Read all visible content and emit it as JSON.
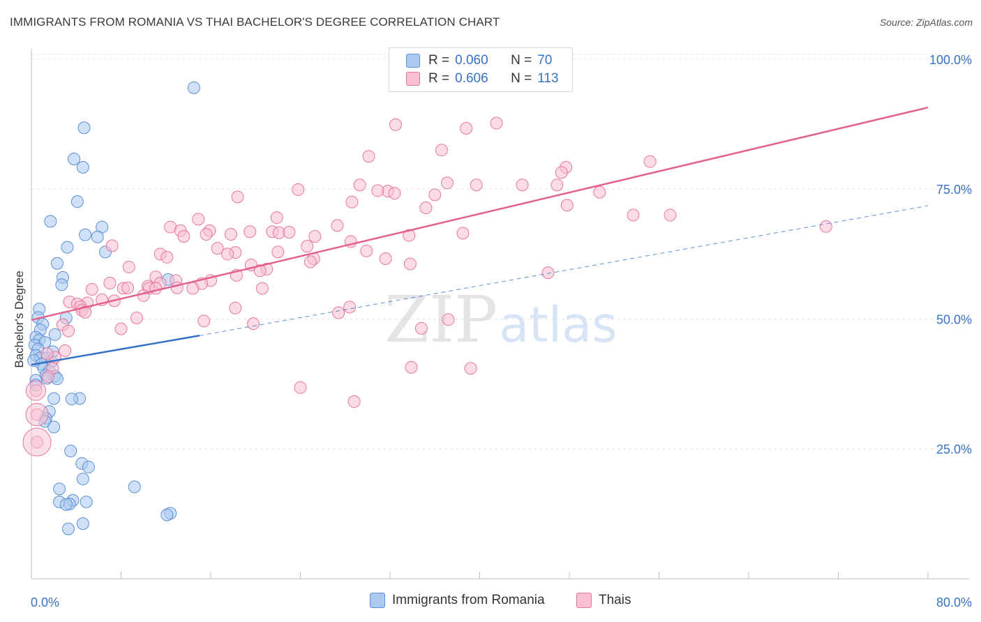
{
  "header": {
    "title": "IMMIGRANTS FROM ROMANIA VS THAI BACHELOR'S DEGREE CORRELATION CHART",
    "source": "Source: ZipAtlas.com"
  },
  "watermark": {
    "zip": "ZIP",
    "atlas": "atlas"
  },
  "legend": {
    "r_label": "R =",
    "n_label": "N =",
    "rows": [
      {
        "r": "0.060",
        "n": "70",
        "color": "#aac8f0",
        "stroke": "#5b8fd6"
      },
      {
        "r": "0.606",
        "n": "113",
        "color": "#f8c0d2",
        "stroke": "#e7769c"
      }
    ]
  },
  "bottom_legend": [
    {
      "label": "Immigrants from Romania",
      "color": "#aac8f0",
      "stroke": "#5b8fd6"
    },
    {
      "label": "Thais",
      "color": "#f8c0d2",
      "stroke": "#e7769c"
    }
  ],
  "chart_data": {
    "type": "scatter",
    "title": "IMMIGRANTS FROM ROMANIA VS THAI BACHELOR'S DEGREE CORRELATION CHART",
    "xlabel": "",
    "ylabel": "Bachelor's Degree",
    "xlim": [
      0,
      80
    ],
    "ylim": [
      0,
      102
    ],
    "x_tick_labels": [
      "0.0%",
      "80.0%"
    ],
    "y_ticks": [
      25,
      50,
      75,
      100
    ],
    "y_tick_labels": [
      "25.0%",
      "50.0%",
      "75.0%",
      "100.0%"
    ],
    "grid": true,
    "legend_position": "top-center",
    "colors": {
      "blue": "#3572c6",
      "pink": "#e2608f",
      "tick_text": "#3572c6"
    },
    "series": [
      {
        "name": "Immigrants from Romania",
        "color": "#aac8f0",
        "stroke": "#5b8fd6",
        "trend": {
          "x": [
            0,
            15
          ],
          "y": [
            41.2,
            46.8
          ],
          "dashed_to": [
            80,
            71.8
          ]
        },
        "points": [
          [
            14.5,
            94.5
          ],
          [
            4.7,
            86.8
          ],
          [
            3.8,
            80.8
          ],
          [
            4.6,
            79.2
          ],
          [
            4.1,
            72.6
          ],
          [
            1.7,
            68.8
          ],
          [
            6.3,
            67.7
          ],
          [
            4.8,
            66.2
          ],
          [
            5.9,
            65.8
          ],
          [
            3.2,
            63.8
          ],
          [
            6.6,
            62.9
          ],
          [
            2.3,
            60.7
          ],
          [
            2.8,
            58.0
          ],
          [
            2.7,
            56.6
          ],
          [
            12.2,
            57.6
          ],
          [
            0.7,
            51.9
          ],
          [
            3.1,
            50.2
          ],
          [
            0.6,
            50.3
          ],
          [
            1.0,
            49.0
          ],
          [
            0.8,
            47.9
          ],
          [
            2.1,
            47.0
          ],
          [
            0.4,
            46.5
          ],
          [
            0.7,
            46.0
          ],
          [
            1.2,
            45.5
          ],
          [
            0.3,
            45.0
          ],
          [
            0.6,
            44.2
          ],
          [
            1.9,
            43.7
          ],
          [
            0.4,
            43.0
          ],
          [
            0.8,
            42.5
          ],
          [
            1.4,
            42.5
          ],
          [
            0.2,
            42.0
          ],
          [
            1.8,
            41.8
          ],
          [
            0.9,
            41.3
          ],
          [
            1.1,
            40.5
          ],
          [
            1.6,
            40.0
          ],
          [
            1.3,
            39.2
          ],
          [
            2.1,
            39.0
          ],
          [
            1.4,
            38.6
          ],
          [
            2.3,
            38.5
          ],
          [
            0.4,
            38.2
          ],
          [
            0.4,
            37.3
          ],
          [
            2.0,
            34.7
          ],
          [
            4.3,
            34.7
          ],
          [
            3.6,
            34.6
          ],
          [
            1.6,
            32.2
          ],
          [
            1.3,
            30.9
          ],
          [
            1.2,
            30.3
          ],
          [
            2.0,
            29.2
          ],
          [
            3.5,
            24.6
          ],
          [
            4.5,
            22.2
          ],
          [
            5.1,
            21.5
          ],
          [
            4.6,
            19.2
          ],
          [
            9.2,
            17.7
          ],
          [
            2.5,
            17.3
          ],
          [
            3.7,
            15.1
          ],
          [
            2.5,
            14.8
          ],
          [
            3.4,
            14.4
          ],
          [
            4.9,
            14.8
          ],
          [
            3.1,
            14.3
          ],
          [
            12.4,
            12.6
          ],
          [
            12.1,
            12.3
          ],
          [
            4.6,
            10.6
          ],
          [
            3.3,
            9.6
          ]
        ]
      },
      {
        "name": "Thais",
        "color": "#f8c0d2",
        "stroke": "#e7769c",
        "trend": {
          "x": [
            0,
            80
          ],
          "y": [
            49.8,
            90.7
          ]
        },
        "points": [
          [
            32.5,
            87.4
          ],
          [
            41.5,
            87.7
          ],
          [
            38.8,
            86.7
          ],
          [
            36.6,
            82.5
          ],
          [
            30.1,
            81.3
          ],
          [
            55.2,
            80.3
          ],
          [
            47.7,
            79.2
          ],
          [
            47.3,
            78.2
          ],
          [
            37.1,
            76.2
          ],
          [
            29.3,
            75.8
          ],
          [
            39.7,
            75.8
          ],
          [
            43.8,
            75.8
          ],
          [
            46.9,
            75.8
          ],
          [
            23.8,
            74.9
          ],
          [
            31.8,
            74.6
          ],
          [
            30.9,
            74.7
          ],
          [
            32.4,
            74.2
          ],
          [
            50.7,
            74.4
          ],
          [
            36.0,
            73.9
          ],
          [
            18.4,
            73.5
          ],
          [
            28.6,
            72.5
          ],
          [
            47.8,
            71.9
          ],
          [
            35.2,
            71.4
          ],
          [
            53.7,
            70.0
          ],
          [
            14.9,
            69.2
          ],
          [
            21.9,
            69.5
          ],
          [
            27.3,
            68.0
          ],
          [
            12.4,
            67.7
          ],
          [
            13.3,
            67.0
          ],
          [
            15.9,
            67.0
          ],
          [
            19.5,
            66.8
          ],
          [
            21.5,
            66.8
          ],
          [
            22.1,
            66.6
          ],
          [
            23.0,
            66.7
          ],
          [
            15.6,
            66.3
          ],
          [
            17.8,
            66.3
          ],
          [
            33.7,
            66.1
          ],
          [
            38.5,
            66.5
          ],
          [
            13.6,
            65.9
          ],
          [
            25.3,
            65.9
          ],
          [
            28.5,
            64.9
          ],
          [
            24.6,
            64.0
          ],
          [
            7.2,
            64.1
          ],
          [
            16.6,
            63.6
          ],
          [
            18.2,
            62.8
          ],
          [
            22.0,
            62.9
          ],
          [
            29.9,
            63.1
          ],
          [
            11.5,
            62.5
          ],
          [
            12.1,
            61.9
          ],
          [
            17.5,
            62.5
          ],
          [
            25.2,
            61.6
          ],
          [
            31.6,
            61.6
          ],
          [
            24.9,
            61.0
          ],
          [
            33.8,
            60.6
          ],
          [
            19.6,
            60.4
          ],
          [
            8.7,
            60.0
          ],
          [
            21.0,
            59.6
          ],
          [
            20.4,
            59.3
          ],
          [
            46.1,
            58.9
          ],
          [
            18.3,
            58.4
          ],
          [
            11.1,
            58.1
          ],
          [
            12.9,
            57.4
          ],
          [
            16.0,
            57.4
          ],
          [
            7.0,
            56.9
          ],
          [
            11.5,
            56.9
          ],
          [
            15.2,
            56.8
          ],
          [
            10.4,
            56.3
          ],
          [
            10.5,
            55.9
          ],
          [
            11.1,
            55.9
          ],
          [
            8.2,
            55.9
          ],
          [
            8.6,
            56.0
          ],
          [
            13.0,
            56.0
          ],
          [
            14.4,
            55.9
          ],
          [
            20.6,
            55.9
          ],
          [
            5.4,
            55.7
          ],
          [
            10.0,
            54.5
          ],
          [
            6.3,
            53.7
          ],
          [
            7.4,
            53.5
          ],
          [
            3.4,
            53.3
          ],
          [
            5.0,
            53.1
          ],
          [
            4.1,
            52.9
          ],
          [
            4.4,
            52.4
          ],
          [
            18.2,
            52.1
          ],
          [
            28.4,
            52.3
          ],
          [
            4.5,
            51.7
          ],
          [
            27.4,
            51.2
          ],
          [
            4.8,
            51.3
          ],
          [
            9.4,
            50.2
          ],
          [
            37.2,
            49.9
          ],
          [
            15.4,
            49.6
          ],
          [
            2.8,
            48.9
          ],
          [
            19.8,
            49.1
          ],
          [
            8.0,
            48.1
          ],
          [
            34.8,
            48.2
          ],
          [
            3.3,
            47.7
          ],
          [
            3.0,
            43.9
          ],
          [
            2.1,
            42.6
          ],
          [
            1.4,
            43.3
          ],
          [
            1.9,
            40.5
          ],
          [
            33.9,
            40.7
          ],
          [
            39.2,
            40.5
          ],
          [
            1.5,
            38.9
          ],
          [
            24.0,
            36.8
          ],
          [
            0.4,
            36.2
          ],
          [
            28.8,
            34.1
          ],
          [
            0.5,
            31.6
          ],
          [
            0.5,
            26.3
          ],
          [
            70.9,
            67.8
          ],
          [
            57.0,
            70.0
          ]
        ]
      }
    ]
  }
}
